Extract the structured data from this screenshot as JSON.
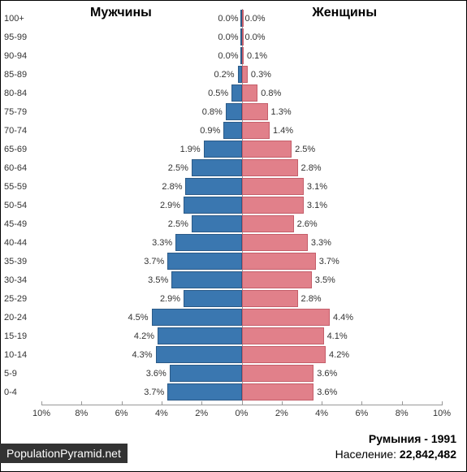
{
  "chart": {
    "type": "population-pyramid",
    "male_label": "Мужчины",
    "female_label": "Женщины",
    "male_color": "#3a77b0",
    "male_border": "#2b5a87",
    "female_color": "#e1808a",
    "female_border": "#c45e6a",
    "background": "#ffffff",
    "axis_color": "#999999",
    "label_fontsize": 11,
    "header_fontsize": 16,
    "x_max_pct": 10,
    "x_ticks": [
      "10%",
      "8%",
      "6%",
      "4%",
      "2%",
      "0%",
      "2%",
      "4%",
      "6%",
      "8%",
      "10%"
    ],
    "age_groups": [
      {
        "label": "100+",
        "male": 0.0,
        "female": 0.0
      },
      {
        "label": "95-99",
        "male": 0.0,
        "female": 0.0
      },
      {
        "label": "90-94",
        "male": 0.0,
        "female": 0.1
      },
      {
        "label": "85-89",
        "male": 0.2,
        "female": 0.3
      },
      {
        "label": "80-84",
        "male": 0.5,
        "female": 0.8
      },
      {
        "label": "75-79",
        "male": 0.8,
        "female": 1.3
      },
      {
        "label": "70-74",
        "male": 0.9,
        "female": 1.4
      },
      {
        "label": "65-69",
        "male": 1.9,
        "female": 2.5
      },
      {
        "label": "60-64",
        "male": 2.5,
        "female": 2.8
      },
      {
        "label": "55-59",
        "male": 2.8,
        "female": 3.1
      },
      {
        "label": "50-54",
        "male": 2.9,
        "female": 3.1
      },
      {
        "label": "45-49",
        "male": 2.5,
        "female": 2.6
      },
      {
        "label": "40-44",
        "male": 3.3,
        "female": 3.3
      },
      {
        "label": "35-39",
        "male": 3.7,
        "female": 3.7
      },
      {
        "label": "30-34",
        "male": 3.5,
        "female": 3.5
      },
      {
        "label": "25-29",
        "male": 2.9,
        "female": 2.8
      },
      {
        "label": "20-24",
        "male": 4.5,
        "female": 4.4
      },
      {
        "label": "15-19",
        "male": 4.2,
        "female": 4.1
      },
      {
        "label": "10-14",
        "male": 4.3,
        "female": 4.2
      },
      {
        "label": "5-9",
        "male": 3.6,
        "female": 3.6
      },
      {
        "label": "0-4",
        "male": 3.7,
        "female": 3.6
      }
    ]
  },
  "footer": {
    "source": "PopulationPyramid.net",
    "country_year": "Румыния - 1991",
    "population_label": "Население: ",
    "population_value": "22,842,482"
  }
}
